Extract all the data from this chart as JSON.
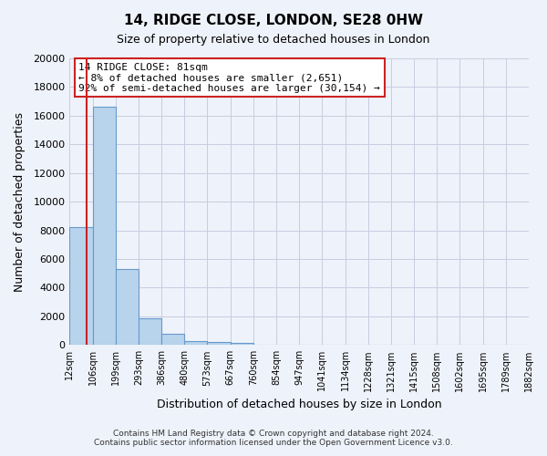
{
  "title": "14, RIDGE CLOSE, LONDON, SE28 0HW",
  "subtitle": "Size of property relative to detached houses in London",
  "xlabel": "Distribution of detached houses by size in London",
  "ylabel": "Number of detached properties",
  "bin_labels": [
    "12sqm",
    "106sqm",
    "199sqm",
    "293sqm",
    "386sqm",
    "480sqm",
    "573sqm",
    "667sqm",
    "760sqm",
    "854sqm",
    "947sqm",
    "1041sqm",
    "1134sqm",
    "1228sqm",
    "1321sqm",
    "1415sqm",
    "1508sqm",
    "1602sqm",
    "1695sqm",
    "1789sqm",
    "1882sqm"
  ],
  "bar_values": [
    8200,
    16600,
    5300,
    1850,
    800,
    280,
    200,
    160,
    0,
    0,
    0,
    0,
    0,
    0,
    0,
    0,
    0,
    0,
    0,
    0
  ],
  "bar_color": "#b8d4ec",
  "bar_edge_color": "#6699cc",
  "annotation_title": "14 RIDGE CLOSE: 81sqm",
  "annotation_line1": "← 8% of detached houses are smaller (2,651)",
  "annotation_line2": "92% of semi-detached houses are larger (30,154) →",
  "annotation_box_facecolor": "#ffffff",
  "annotation_box_edgecolor": "#cc2222",
  "ylim": [
    0,
    20000
  ],
  "yticks": [
    0,
    2000,
    4000,
    6000,
    8000,
    10000,
    12000,
    14000,
    16000,
    18000,
    20000
  ],
  "footer1": "Contains HM Land Registry data © Crown copyright and database right 2024.",
  "footer2": "Contains public sector information licensed under the Open Government Licence v3.0.",
  "bg_color": "#eef2fa",
  "grid_color": "#c8cce0",
  "red_line_color": "#cc2222"
}
